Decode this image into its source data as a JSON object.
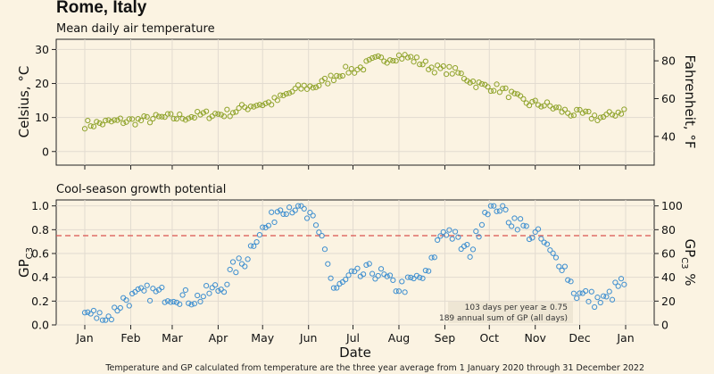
{
  "title": "Rome, Italy",
  "footnote": "Temperature and GP calculated from temperature are the three year average from 1 January 2020 through 31 December 2022",
  "colors": {
    "background": "#fbf3e2",
    "temp": "#8fa32a",
    "gp": "#3e8fd0",
    "threshold": "#d9534f",
    "grid": "#e2dbd0"
  },
  "chart_data": [
    {
      "type": "scatter",
      "title": "Mean daily air temperature",
      "ylabel": "Celsius, °C",
      "ylabel_right": "Fahrenheit, °F",
      "ylim": [
        -4,
        33
      ],
      "yticks": [
        "0",
        "10",
        "20",
        "30"
      ],
      "yticks_right": [
        "40",
        "60",
        "80"
      ],
      "series_anchors": {
        "day": [
          1,
          30,
          60,
          91,
          121,
          152,
          182,
          200,
          213,
          244,
          274,
          305,
          335,
          350,
          365
        ],
        "value": [
          8,
          9,
          10,
          11,
          14,
          19,
          24,
          27,
          28,
          24,
          19,
          14,
          11,
          10,
          12
        ]
      }
    },
    {
      "type": "scatter",
      "title": "Cool-season growth potential",
      "ylabel": "GP",
      "ylabel_sub": "C3",
      "ylabel_right": "GP",
      "ylabel_right_sub": "C3",
      "ylabel_right_suffix": " %",
      "xlabel": "Date",
      "ylim": [
        0,
        1.05
      ],
      "yticks": [
        "0.0",
        "0.2",
        "0.4",
        "0.6",
        "0.8",
        "1.0"
      ],
      "yticks_right": [
        "0",
        "20",
        "40",
        "60",
        "80",
        "100"
      ],
      "threshold": 0.75,
      "annotation_days": "103 days per year ≥ 0.75",
      "annotation_sum": "189 annual sum of GP (all days)",
      "series_anchors": {
        "day": [
          1,
          15,
          30,
          45,
          60,
          75,
          91,
          105,
          121,
          135,
          145,
          152,
          160,
          170,
          182,
          195,
          213,
          230,
          244,
          260,
          274,
          280,
          290,
          305,
          320,
          335,
          350,
          365
        ],
        "value": [
          0.1,
          0.06,
          0.22,
          0.27,
          0.25,
          0.22,
          0.3,
          0.5,
          0.8,
          1.0,
          1.0,
          0.9,
          0.75,
          0.3,
          0.4,
          0.45,
          0.32,
          0.4,
          0.8,
          0.62,
          1.0,
          1.0,
          0.88,
          0.75,
          0.55,
          0.25,
          0.2,
          0.35
        ]
      }
    }
  ],
  "x_axis": {
    "ticks": [
      "Jan",
      "Feb",
      "Mar",
      "Apr",
      "May",
      "Jun",
      "Jul",
      "Aug",
      "Sep",
      "Oct",
      "Nov",
      "Dec",
      "Jan"
    ],
    "tick_days": [
      1,
      32,
      60,
      91,
      121,
      152,
      182,
      213,
      244,
      274,
      305,
      335,
      366
    ]
  }
}
